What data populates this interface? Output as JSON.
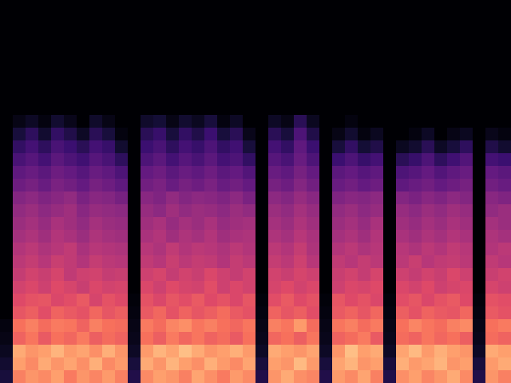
{
  "chart_data": {
    "type": "heatmap",
    "color": "magma",
    "tick_labels": false,
    "x": [
      0,
      1,
      2,
      3,
      4,
      5,
      6,
      7,
      8,
      9,
      10,
      11,
      12,
      13,
      14,
      15,
      16,
      17,
      18,
      19,
      20,
      21,
      22,
      23,
      24,
      25,
      26,
      27,
      28,
      29,
      30,
      31,
      32,
      33,
      34,
      35,
      36,
      37,
      38,
      39,
      40
    ],
    "y": [
      0,
      1,
      2,
      3,
      4,
      5,
      6,
      7,
      8,
      9,
      10,
      11,
      12,
      13,
      14,
      15,
      16,
      17,
      18,
      19,
      20,
      21
    ],
    "xlim": [
      0,
      40
    ],
    "ylim": [
      0,
      30
    ],
    "zlim": [
      0,
      90
    ],
    "z": [
      [
        10,
        66,
        70,
        68,
        72,
        65,
        70,
        67,
        71,
        66,
        12,
        68,
        72,
        70,
        66,
        73,
        69,
        65,
        71,
        68,
        12,
        70,
        74,
        69,
        67,
        12,
        71,
        68,
        73,
        66,
        12,
        69,
        72,
        67,
        70,
        74,
        68,
        12,
        70,
        66
      ],
      [
        8,
        72,
        68,
        74,
        70,
        73,
        69,
        75,
        68,
        71,
        10,
        74,
        70,
        76,
        72,
        69,
        75,
        71,
        68,
        73,
        10,
        72,
        70,
        77,
        71,
        10,
        73,
        76,
        70,
        72,
        10,
        75,
        71,
        73,
        76,
        70,
        72,
        10,
        71,
        74
      ],
      [
        5,
        74,
        70,
        72,
        76,
        71,
        73,
        69,
        75,
        70,
        6,
        71,
        76,
        73,
        78,
        74,
        70,
        72,
        75,
        71,
        6,
        74,
        72,
        70,
        73,
        6,
        70,
        78,
        72,
        74,
        6,
        73,
        77,
        71,
        75,
        72,
        70,
        6,
        74,
        72
      ],
      [
        3,
        60,
        64,
        58,
        63,
        61,
        65,
        59,
        62,
        60,
        4,
        63,
        59,
        65,
        61,
        64,
        60,
        62,
        58,
        63,
        4,
        61,
        63,
        59,
        64,
        4,
        60,
        62,
        65,
        58,
        4,
        62,
        60,
        64,
        61,
        63,
        59,
        4,
        62,
        60
      ],
      [
        2,
        63,
        66,
        62,
        65,
        64,
        60,
        66,
        63,
        62,
        3,
        65,
        62,
        67,
        69,
        64,
        66,
        63,
        61,
        64,
        3,
        66,
        64,
        71,
        62,
        3,
        64,
        66,
        62,
        65,
        3,
        63,
        67,
        64,
        62,
        66,
        68,
        3,
        63,
        65
      ],
      [
        0,
        57,
        59,
        55,
        60,
        58,
        56,
        61,
        57,
        59,
        2,
        58,
        61,
        56,
        60,
        57,
        59,
        62,
        58,
        56,
        2,
        60,
        57,
        59,
        55,
        2,
        58,
        60,
        57,
        61,
        2,
        59,
        56,
        60,
        58,
        57,
        61,
        2,
        58,
        56
      ],
      [
        0,
        54,
        56,
        57,
        53,
        55,
        58,
        52,
        56,
        54,
        1,
        56,
        53,
        57,
        55,
        58,
        54,
        56,
        53,
        57,
        1,
        55,
        58,
        54,
        56,
        1,
        57,
        54,
        56,
        53,
        1,
        55,
        57,
        53,
        56,
        58,
        54,
        1,
        56,
        55
      ],
      [
        0,
        51,
        53,
        50,
        54,
        52,
        49,
        53,
        51,
        52,
        0,
        53,
        50,
        54,
        52,
        51,
        55,
        50,
        53,
        51,
        0,
        52,
        54,
        51,
        53,
        0,
        50,
        53,
        52,
        54,
        0,
        53,
        51,
        54,
        50,
        52,
        53,
        0,
        52,
        50
      ],
      [
        0,
        48,
        51,
        49,
        52,
        47,
        50,
        51,
        48,
        49,
        0,
        50,
        52,
        48,
        51,
        49,
        53,
        50,
        48,
        51,
        0,
        51,
        49,
        52,
        50,
        0,
        49,
        51,
        48,
        52,
        0,
        50,
        48,
        51,
        49,
        53,
        50,
        0,
        49,
        51
      ],
      [
        0,
        46,
        48,
        45,
        49,
        47,
        44,
        48,
        46,
        45,
        0,
        47,
        45,
        49,
        46,
        48,
        47,
        44,
        48,
        46,
        0,
        48,
        46,
        50,
        45,
        0,
        47,
        45,
        48,
        46,
        0,
        46,
        49,
        45,
        47,
        48,
        46,
        0,
        47,
        45
      ],
      [
        0,
        44,
        46,
        43,
        45,
        47,
        42,
        45,
        44,
        43,
        0,
        45,
        43,
        47,
        44,
        46,
        45,
        43,
        46,
        44,
        0,
        46,
        44,
        48,
        43,
        0,
        44,
        46,
        43,
        45,
        0,
        45,
        43,
        46,
        44,
        47,
        45,
        0,
        44,
        46
      ],
      [
        0,
        41,
        43,
        40,
        44,
        42,
        39,
        43,
        41,
        40,
        0,
        42,
        44,
        40,
        43,
        41,
        44,
        40,
        42,
        43,
        0,
        43,
        41,
        45,
        42,
        0,
        41,
        43,
        40,
        44,
        0,
        42,
        40,
        43,
        41,
        44,
        42,
        0,
        43,
        41
      ],
      [
        0,
        39,
        41,
        38,
        42,
        40,
        37,
        41,
        39,
        38,
        0,
        40,
        42,
        38,
        41,
        39,
        42,
        38,
        40,
        41,
        0,
        41,
        39,
        43,
        40,
        0,
        39,
        41,
        38,
        42,
        0,
        40,
        38,
        41,
        39,
        42,
        40,
        0,
        41,
        39
      ],
      [
        0,
        37,
        39,
        36,
        38,
        40,
        35,
        38,
        37,
        36,
        0,
        38,
        36,
        40,
        37,
        39,
        38,
        36,
        39,
        37,
        0,
        39,
        37,
        41,
        38,
        0,
        37,
        39,
        36,
        38,
        0,
        38,
        36,
        39,
        37,
        40,
        38,
        0,
        37,
        39
      ],
      [
        0,
        34,
        36,
        33,
        35,
        37,
        32,
        35,
        34,
        31,
        0,
        35,
        33,
        37,
        34,
        36,
        35,
        33,
        36,
        32,
        0,
        36,
        34,
        38,
        35,
        0,
        33,
        35,
        34,
        36,
        0,
        34,
        32,
        35,
        33,
        36,
        34,
        0,
        35,
        33
      ],
      [
        0,
        29,
        31,
        28,
        32,
        30,
        27,
        31,
        29,
        26,
        0,
        30,
        32,
        28,
        31,
        29,
        32,
        28,
        30,
        27,
        0,
        31,
        29,
        34,
        30,
        0,
        28,
        30,
        27,
        29,
        0,
        26,
        28,
        30,
        27,
        29,
        31,
        0,
        30,
        28
      ],
      [
        0,
        26,
        28,
        25,
        29,
        27,
        24,
        28,
        26,
        22,
        0,
        27,
        29,
        25,
        28,
        26,
        29,
        25,
        27,
        23,
        0,
        28,
        26,
        31,
        27,
        0,
        25,
        27,
        24,
        26,
        0,
        22,
        24,
        27,
        23,
        26,
        28,
        0,
        27,
        25
      ],
      [
        0,
        21,
        24,
        20,
        25,
        22,
        19,
        24,
        21,
        15,
        0,
        22,
        25,
        20,
        24,
        21,
        25,
        20,
        22,
        16,
        0,
        24,
        21,
        28,
        22,
        0,
        18,
        22,
        17,
        20,
        0,
        14,
        17,
        22,
        15,
        19,
        23,
        0,
        20,
        18
      ],
      [
        0,
        16,
        20,
        15,
        21,
        18,
        14,
        20,
        17,
        8,
        0,
        18,
        21,
        15,
        20,
        17,
        22,
        16,
        19,
        10,
        0,
        20,
        16,
        26,
        18,
        0,
        10,
        16,
        9,
        12,
        0,
        5,
        8,
        14,
        6,
        10,
        15,
        0,
        12,
        8
      ],
      [
        0,
        10,
        15,
        8,
        16,
        12,
        6,
        14,
        10,
        2,
        0,
        14,
        17,
        10,
        16,
        12,
        18,
        10,
        14,
        4,
        0,
        14,
        10,
        22,
        12,
        0,
        3,
        8,
        2,
        5,
        0,
        0,
        2,
        6,
        0,
        3,
        5,
        0,
        4,
        2
      ],
      [
        0,
        3,
        6,
        2,
        8,
        4,
        0,
        7,
        3,
        0,
        0,
        7,
        9,
        3,
        8,
        5,
        10,
        2,
        6,
        0,
        0,
        6,
        3,
        14,
        5,
        0,
        0,
        2,
        0,
        0,
        0,
        0,
        0,
        0,
        0,
        0,
        0,
        0,
        0,
        0
      ]
    ]
  }
}
